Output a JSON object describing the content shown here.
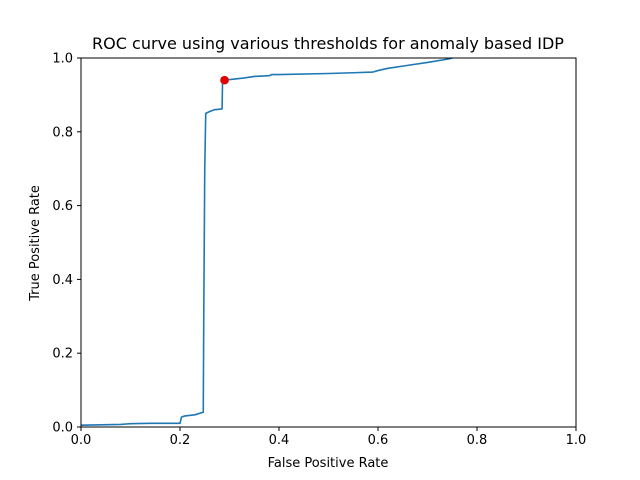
{
  "chart_data": {
    "type": "line",
    "title": "ROC curve using various thresholds for anomaly based IDP",
    "xlabel": "False Positive Rate",
    "ylabel": "True Positive Rate",
    "xlim": [
      0.0,
      1.0
    ],
    "ylim": [
      0.0,
      1.0
    ],
    "xticks": [
      "0.0",
      "0.2",
      "0.4",
      "0.6",
      "0.8",
      "1.0"
    ],
    "yticks": [
      "0.0",
      "0.2",
      "0.4",
      "0.6",
      "0.8",
      "1.0"
    ],
    "grid": false,
    "series": [
      {
        "color": "#1f77b4",
        "x": [
          0.0,
          0.04,
          0.08,
          0.1,
          0.14,
          0.2,
          0.203,
          0.21,
          0.23,
          0.247,
          0.248,
          0.25,
          0.252,
          0.26,
          0.27,
          0.285,
          0.286,
          0.29,
          0.31,
          0.33,
          0.35,
          0.38,
          0.385,
          0.4,
          0.5,
          0.55,
          0.59,
          0.6,
          0.62,
          0.66,
          0.7,
          0.745,
          0.75
        ],
        "y": [
          0.005,
          0.006,
          0.007,
          0.009,
          0.01,
          0.01,
          0.027,
          0.03,
          0.033,
          0.04,
          0.3,
          0.7,
          0.85,
          0.855,
          0.86,
          0.862,
          0.94,
          0.94,
          0.943,
          0.946,
          0.95,
          0.952,
          0.955,
          0.955,
          0.958,
          0.96,
          0.962,
          0.966,
          0.972,
          0.98,
          0.988,
          0.998,
          1.0
        ]
      }
    ],
    "highlight_point": {
      "x": 0.29,
      "y": 0.94,
      "color": "#e00000"
    }
  }
}
